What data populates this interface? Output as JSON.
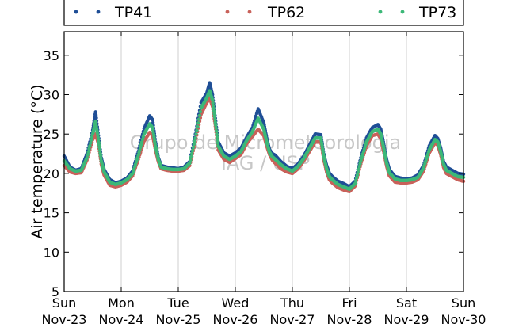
{
  "chart_data": {
    "type": "scatter",
    "title": "",
    "xlabel": "",
    "ylabel": "Air temperature (°C)",
    "ylim": [
      5,
      38
    ],
    "y_ticks": [
      5,
      10,
      15,
      20,
      25,
      30,
      35
    ],
    "x_range_days": [
      "2014-11-23",
      "2014-11-30"
    ],
    "x_tick_labels": [
      {
        "day": "Sun",
        "date": "Nov-23"
      },
      {
        "day": "Mon",
        "date": "Nov-24"
      },
      {
        "day": "Tue",
        "date": "Nov-25"
      },
      {
        "day": "Wed",
        "date": "Nov-26"
      },
      {
        "day": "Thu",
        "date": "Nov-27"
      },
      {
        "day": "Fri",
        "date": "Nov-28"
      },
      {
        "day": "Sat",
        "date": "Nov-29"
      },
      {
        "day": "Sun",
        "date": "Nov-30"
      }
    ],
    "grid": "vertical",
    "legend_position": "top",
    "watermark": [
      "Grupo de Micrometeorologia",
      "IAG / USP"
    ],
    "series": [
      {
        "name": "TP41",
        "color": "#1f4e96",
        "x": [
          0.0,
          0.1,
          0.2,
          0.3,
          0.4,
          0.5,
          0.55,
          0.6,
          0.65,
          0.7,
          0.8,
          0.9,
          1.0,
          1.1,
          1.2,
          1.3,
          1.4,
          1.5,
          1.55,
          1.6,
          1.65,
          1.7,
          1.8,
          1.9,
          2.0,
          2.1,
          2.2,
          2.3,
          2.4,
          2.5,
          2.55,
          2.6,
          2.65,
          2.7,
          2.8,
          2.9,
          3.0,
          3.1,
          3.2,
          3.3,
          3.4,
          3.5,
          3.55,
          3.6,
          3.65,
          3.7,
          3.8,
          3.9,
          4.0,
          4.1,
          4.2,
          4.3,
          4.4,
          4.5,
          4.55,
          4.6,
          4.65,
          4.7,
          4.8,
          4.9,
          5.0,
          5.1,
          5.2,
          5.3,
          5.4,
          5.5,
          5.55,
          5.6,
          5.65,
          5.7,
          5.8,
          5.9,
          6.0,
          6.1,
          6.2,
          6.3,
          6.4,
          6.5,
          6.55,
          6.6,
          6.65,
          6.7,
          6.8,
          6.9,
          7.0
        ],
        "y": [
          22.2,
          20.8,
          20.4,
          20.6,
          22.5,
          25.5,
          27.8,
          24.8,
          22.0,
          20.5,
          19.2,
          18.8,
          19.0,
          19.4,
          20.3,
          22.8,
          25.7,
          27.3,
          26.8,
          24.0,
          22.0,
          21.0,
          20.8,
          20.7,
          20.6,
          20.8,
          21.5,
          25.0,
          29.0,
          30.2,
          31.5,
          30.0,
          27.0,
          24.0,
          22.6,
          22.2,
          22.6,
          23.2,
          24.6,
          25.8,
          28.2,
          26.4,
          24.5,
          23.0,
          22.5,
          22.3,
          21.5,
          20.9,
          20.6,
          21.2,
          22.2,
          23.6,
          25.0,
          24.9,
          22.5,
          21.0,
          20.0,
          19.6,
          19.0,
          18.7,
          18.3,
          19.0,
          22.0,
          24.5,
          25.8,
          26.2,
          25.6,
          23.8,
          21.8,
          20.5,
          19.6,
          19.4,
          19.3,
          19.4,
          19.8,
          21.0,
          23.5,
          24.8,
          24.4,
          23.2,
          21.5,
          20.8,
          20.4,
          20.0,
          19.9
        ]
      },
      {
        "name": "TP62",
        "color": "#c8615a",
        "x": [
          0.0,
          0.1,
          0.2,
          0.3,
          0.4,
          0.5,
          0.55,
          0.6,
          0.65,
          0.7,
          0.8,
          0.9,
          1.0,
          1.1,
          1.2,
          1.3,
          1.4,
          1.5,
          1.55,
          1.6,
          1.65,
          1.7,
          1.8,
          1.9,
          2.0,
          2.1,
          2.2,
          2.3,
          2.4,
          2.5,
          2.55,
          2.6,
          2.65,
          2.7,
          2.8,
          2.9,
          3.0,
          3.1,
          3.2,
          3.3,
          3.4,
          3.5,
          3.55,
          3.6,
          3.65,
          3.7,
          3.8,
          3.9,
          4.0,
          4.1,
          4.2,
          4.3,
          4.4,
          4.5,
          4.55,
          4.6,
          4.65,
          4.7,
          4.8,
          4.9,
          5.0,
          5.1,
          5.2,
          5.3,
          5.4,
          5.5,
          5.55,
          5.6,
          5.65,
          5.7,
          5.8,
          5.9,
          6.0,
          6.1,
          6.2,
          6.3,
          6.4,
          6.5,
          6.55,
          6.6,
          6.65,
          6.7,
          6.8,
          6.9,
          7.0
        ],
        "y": [
          21.0,
          20.2,
          20.0,
          20.1,
          21.7,
          24.3,
          25.0,
          23.8,
          21.2,
          19.8,
          18.5,
          18.3,
          18.5,
          18.9,
          19.7,
          21.8,
          24.1,
          25.2,
          24.8,
          23.0,
          21.5,
          20.6,
          20.4,
          20.3,
          20.3,
          20.4,
          21.0,
          24.0,
          27.5,
          29.0,
          29.6,
          28.5,
          26.0,
          23.0,
          21.8,
          21.4,
          21.9,
          22.4,
          23.8,
          24.7,
          25.6,
          24.8,
          23.5,
          22.4,
          21.7,
          21.3,
          20.6,
          20.2,
          20.0,
          20.6,
          21.6,
          22.8,
          24.0,
          24.0,
          21.8,
          20.2,
          19.2,
          18.8,
          18.2,
          17.9,
          17.7,
          18.4,
          21.2,
          23.5,
          24.8,
          25.0,
          24.4,
          22.8,
          21.0,
          19.7,
          18.9,
          18.8,
          18.8,
          18.9,
          19.2,
          20.3,
          22.6,
          23.9,
          23.6,
          22.4,
          20.8,
          20.0,
          19.6,
          19.2,
          19.0
        ]
      },
      {
        "name": "TP73",
        "color": "#3cb878",
        "x": [
          0.0,
          0.1,
          0.2,
          0.3,
          0.4,
          0.5,
          0.55,
          0.6,
          0.65,
          0.7,
          0.8,
          0.9,
          1.0,
          1.1,
          1.2,
          1.3,
          1.4,
          1.5,
          1.55,
          1.6,
          1.65,
          1.7,
          1.8,
          1.9,
          2.0,
          2.1,
          2.2,
          2.3,
          2.4,
          2.5,
          2.55,
          2.6,
          2.65,
          2.7,
          2.8,
          2.9,
          3.0,
          3.1,
          3.2,
          3.3,
          3.4,
          3.5,
          3.55,
          3.6,
          3.65,
          3.7,
          3.8,
          3.9,
          4.0,
          4.1,
          4.2,
          4.3,
          4.4,
          4.5,
          4.55,
          4.6,
          4.65,
          4.7,
          4.8,
          4.9,
          5.0,
          5.1,
          5.2,
          5.3,
          5.4,
          5.5,
          5.55,
          5.6,
          5.65,
          5.7,
          5.8,
          5.9,
          6.0,
          6.1,
          6.2,
          6.3,
          6.4,
          6.5,
          6.55,
          6.6,
          6.65,
          6.7,
          6.8,
          6.9,
          7.0
        ],
        "y": [
          21.6,
          20.6,
          20.3,
          20.4,
          22.0,
          25.0,
          26.6,
          24.3,
          21.6,
          20.2,
          18.9,
          18.6,
          18.8,
          19.2,
          20.0,
          22.3,
          25.0,
          26.3,
          25.8,
          23.5,
          21.8,
          20.8,
          20.6,
          20.5,
          20.5,
          20.6,
          21.3,
          24.5,
          28.3,
          29.6,
          30.5,
          29.3,
          26.5,
          23.5,
          22.2,
          21.8,
          22.2,
          22.8,
          24.2,
          25.3,
          27.0,
          25.6,
          24.0,
          22.7,
          22.1,
          21.8,
          21.1,
          20.6,
          20.3,
          20.9,
          21.9,
          23.2,
          24.5,
          24.5,
          22.2,
          20.6,
          19.6,
          19.2,
          18.6,
          18.3,
          18.0,
          18.7,
          21.6,
          24.0,
          25.3,
          25.6,
          25.0,
          23.3,
          21.4,
          20.1,
          19.3,
          19.1,
          19.1,
          19.2,
          19.5,
          20.7,
          23.0,
          24.3,
          24.0,
          22.8,
          21.2,
          20.4,
          20.0,
          19.6,
          19.5
        ]
      }
    ]
  }
}
